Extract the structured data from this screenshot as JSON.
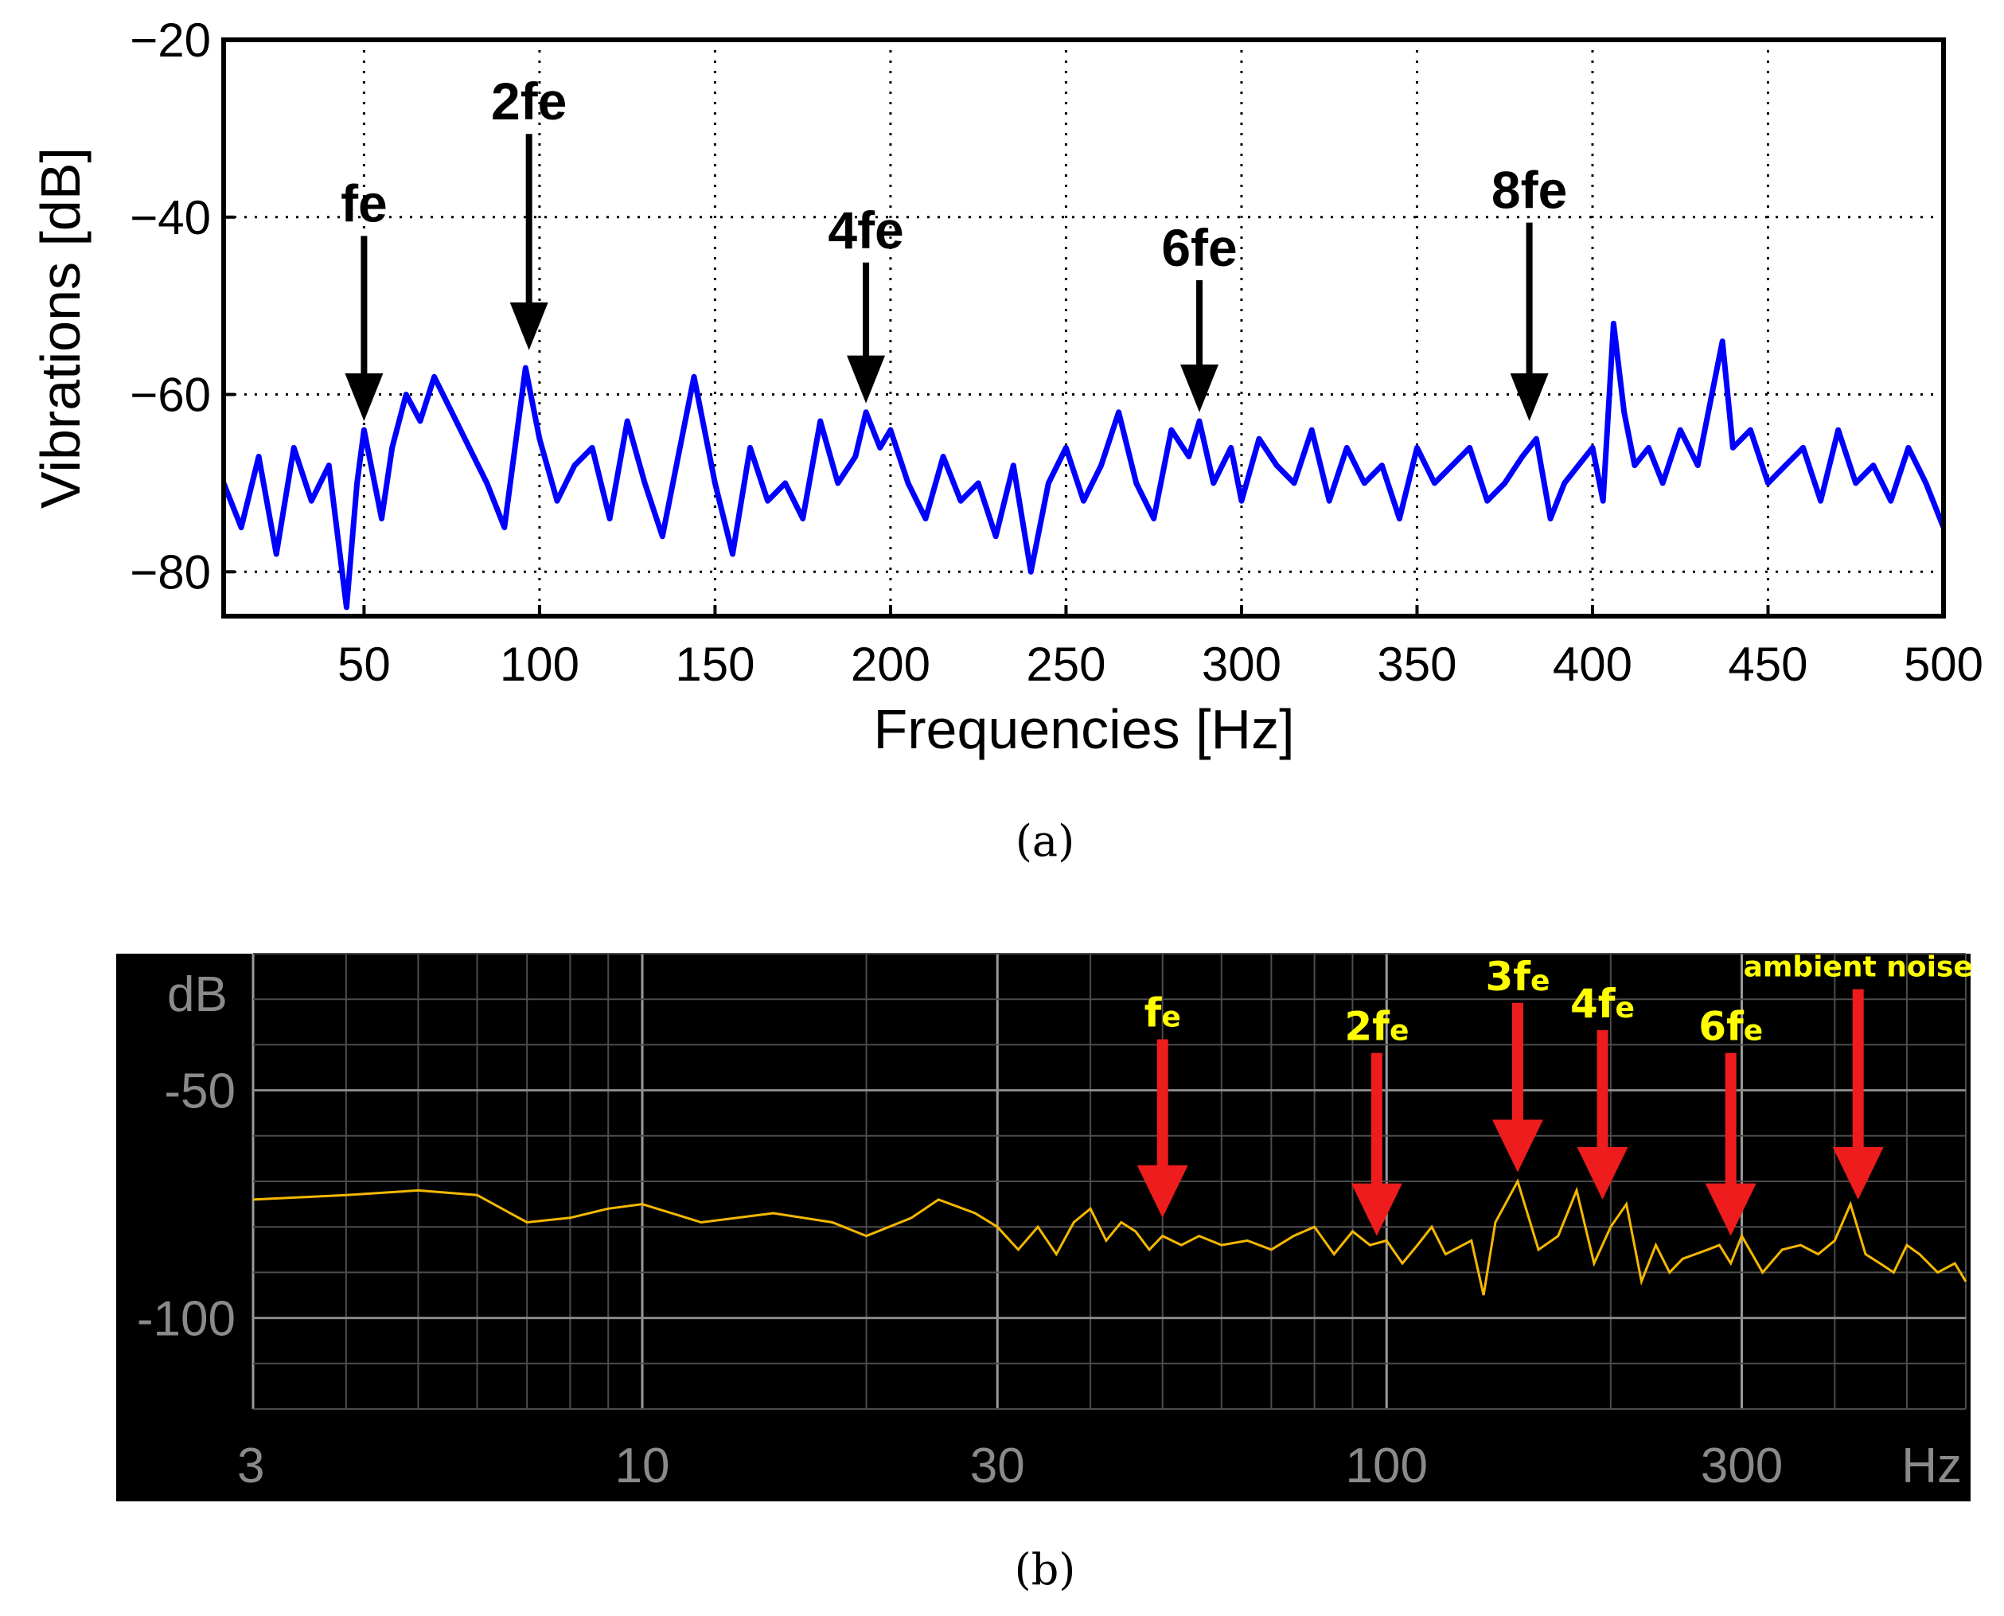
{
  "chart_data": [
    {
      "panel": "(a)",
      "type": "line",
      "xlabel": "Frequencies [Hz]",
      "ylabel": "Vibrations [dB]",
      "xlim": [
        10,
        500
      ],
      "ylim": [
        -85,
        -20
      ],
      "x_ticks": [
        50,
        100,
        150,
        200,
        250,
        300,
        350,
        400,
        450,
        500
      ],
      "y_ticks": [
        -80,
        -60,
        -40,
        -20
      ],
      "x_tick_labels": [
        "50",
        "100",
        "150",
        "200",
        "250",
        "300",
        "350",
        "400",
        "450",
        "500"
      ],
      "y_tick_labels": [
        "−80",
        "−60",
        "−40",
        "−20"
      ],
      "grid": true,
      "grid_style": "dotted",
      "series_color": "#0000ff",
      "series": [
        {
          "x": [
            10,
            15,
            20,
            25,
            30,
            35,
            40,
            45,
            48,
            50,
            55,
            58,
            62,
            66,
            70,
            75,
            80,
            85,
            90,
            96,
            100,
            105,
            110,
            115,
            120,
            125,
            130,
            135,
            140,
            144,
            150,
            155,
            160,
            165,
            170,
            175,
            180,
            185,
            190,
            193,
            197,
            200,
            205,
            210,
            215,
            220,
            225,
            230,
            235,
            240,
            245,
            250,
            255,
            260,
            265,
            270,
            275,
            280,
            285,
            288,
            292,
            297,
            300,
            305,
            310,
            315,
            320,
            325,
            330,
            335,
            340,
            345,
            350,
            355,
            360,
            365,
            370,
            375,
            380,
            384,
            388,
            392,
            396,
            400,
            403,
            406,
            409,
            412,
            416,
            420,
            425,
            430,
            434,
            437,
            440,
            445,
            450,
            455,
            460,
            465,
            470,
            475,
            480,
            485,
            490,
            495,
            500
          ],
          "y": [
            -70,
            -75,
            -67,
            -78,
            -66,
            -72,
            -68,
            -84,
            -70,
            -64,
            -74,
            -66,
            -60,
            -63,
            -58,
            -62,
            -66,
            -70,
            -75,
            -57,
            -65,
            -72,
            -68,
            -66,
            -74,
            -63,
            -70,
            -76,
            -66,
            -58,
            -70,
            -78,
            -66,
            -72,
            -70,
            -74,
            -63,
            -70,
            -67,
            -62,
            -66,
            -64,
            -70,
            -74,
            -67,
            -72,
            -70,
            -76,
            -68,
            -80,
            -70,
            -66,
            -72,
            -68,
            -62,
            -70,
            -74,
            -64,
            -67,
            -63,
            -70,
            -66,
            -72,
            -65,
            -68,
            -70,
            -64,
            -72,
            -66,
            -70,
            -68,
            -74,
            -66,
            -70,
            -68,
            -66,
            -72,
            -70,
            -67,
            -65,
            -74,
            -70,
            -68,
            -66,
            -72,
            -52,
            -62,
            -68,
            -66,
            -70,
            -64,
            -68,
            -60,
            -54,
            -66,
            -64,
            -70,
            -68,
            -66,
            -72,
            -64,
            -70,
            -68,
            -72,
            -66,
            -70,
            -75
          ]
        }
      ],
      "annotations": [
        {
          "label": "fe",
          "x": 50,
          "y": -63
        },
        {
          "label": "2fe",
          "x": 97,
          "y": -55
        },
        {
          "label": "4fe",
          "x": 193,
          "y": -61
        },
        {
          "label": "6fe",
          "x": 288,
          "y": -62
        },
        {
          "label": "8fe",
          "x": 382,
          "y": -63
        }
      ]
    },
    {
      "panel": "(b)",
      "type": "line",
      "xlabel": "Hz",
      "ylabel": "dB",
      "x_scale": "log",
      "xlim": [
        3,
        600
      ],
      "ylim": [
        -120,
        -20
      ],
      "x_ticks": [
        3,
        10,
        30,
        100,
        300
      ],
      "y_ticks": [
        -50,
        -100
      ],
      "x_tick_labels": [
        "3",
        "10",
        "30",
        "100",
        "300"
      ],
      "y_tick_labels": [
        "-50",
        "-100"
      ],
      "grid": true,
      "background_color": "#000000",
      "series_color": "#f5b800",
      "arrow_color": "#ee1c1c",
      "label_color": "#ffff00",
      "series": [
        {
          "x": [
            3,
            4,
            5,
            6,
            7,
            8,
            9,
            10,
            12,
            15,
            18,
            20,
            23,
            25,
            28,
            30,
            32,
            34,
            36,
            38,
            40,
            42,
            44,
            46,
            48,
            50,
            53,
            56,
            60,
            65,
            70,
            75,
            80,
            85,
            90,
            95,
            100,
            105,
            110,
            115,
            120,
            130,
            135,
            140,
            150,
            160,
            170,
            180,
            190,
            200,
            210,
            220,
            230,
            240,
            250,
            260,
            270,
            280,
            290,
            300,
            320,
            340,
            360,
            380,
            400,
            420,
            440,
            460,
            480,
            500,
            520,
            550,
            580,
            600
          ],
          "y": [
            -74,
            -73,
            -72,
            -73,
            -79,
            -78,
            -76,
            -75,
            -79,
            -77,
            -79,
            -82,
            -78,
            -74,
            -77,
            -80,
            -85,
            -80,
            -86,
            -79,
            -76,
            -83,
            -79,
            -81,
            -85,
            -82,
            -84,
            -82,
            -84,
            -83,
            -85,
            -82,
            -80,
            -86,
            -81,
            -84,
            -83,
            -88,
            -84,
            -80,
            -86,
            -83,
            -95,
            -79,
            -70,
            -85,
            -82,
            -72,
            -88,
            -80,
            -75,
            -92,
            -84,
            -90,
            -87,
            -86,
            -85,
            -84,
            -88,
            -82,
            -90,
            -85,
            -84,
            -86,
            -83,
            -75,
            -86,
            -88,
            -90,
            -84,
            -86,
            -90,
            -88,
            -92
          ]
        }
      ],
      "annotations": [
        {
          "label": "fe",
          "x": 50,
          "y": -78
        },
        {
          "label": "2fe",
          "x": 97,
          "y": -82
        },
        {
          "label": "3fe",
          "x": 150,
          "y": -68
        },
        {
          "label": "4fe",
          "x": 195,
          "y": -74
        },
        {
          "label": "6fe",
          "x": 290,
          "y": -82
        },
        {
          "label": "ambient noise",
          "x": 430,
          "y": -74
        }
      ]
    }
  ],
  "captions": {
    "a": "(a)",
    "b": "(b)"
  }
}
